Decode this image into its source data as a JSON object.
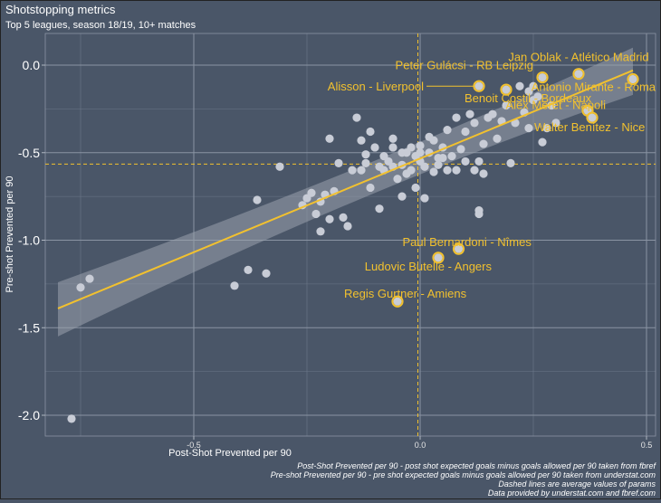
{
  "chart_data": {
    "type": "scatter",
    "title": "Shotstopping metrics",
    "subtitle": "Top 5 leagues, season 18/19, 10+ matches",
    "xlabel": "Post-Shot Prevented per 90",
    "ylabel": "Pre-shot Prevented per 90",
    "xlim": [
      -0.83,
      0.52
    ],
    "ylim": [
      -2.05,
      0.15
    ],
    "x_ticks": [
      -0.5,
      0.0,
      0.5
    ],
    "x_tick_labels": [
      "-0.5",
      "0.0",
      "0.5"
    ],
    "y_ticks": [
      0.0,
      -0.5,
      -1.0,
      -1.5,
      -2.0
    ],
    "y_tick_labels": [
      "0.0",
      "-0.5",
      "-1.0",
      "-1.5",
      "-2.0"
    ],
    "mean_x": -0.005,
    "mean_y": -0.565,
    "regression": {
      "x0": -0.8,
      "y0": -1.39,
      "x1": 0.47,
      "y1": -0.03
    },
    "ci_band": {
      "x0": -0.8,
      "lo0": -1.55,
      "hi0": -1.24,
      "xm": -0.1,
      "lom": -0.67,
      "him": -0.59,
      "x1": 0.47,
      "lo1": -0.17,
      "hi1": 0.1
    },
    "points": [
      [
        -0.77,
        -2.02
      ],
      [
        -0.75,
        -1.27
      ],
      [
        -0.73,
        -1.22
      ],
      [
        -0.41,
        -1.26
      ],
      [
        -0.38,
        -1.17
      ],
      [
        -0.34,
        -1.19
      ],
      [
        -0.36,
        -0.77
      ],
      [
        -0.31,
        -0.58
      ],
      [
        -0.26,
        -0.8
      ],
      [
        -0.25,
        -0.76
      ],
      [
        -0.24,
        -0.73
      ],
      [
        -0.23,
        -0.85
      ],
      [
        -0.22,
        -0.95
      ],
      [
        -0.22,
        -0.78
      ],
      [
        -0.21,
        -0.74
      ],
      [
        -0.2,
        -0.88
      ],
      [
        -0.2,
        -0.42
      ],
      [
        -0.19,
        -0.72
      ],
      [
        -0.18,
        -0.56
      ],
      [
        -0.17,
        -0.87
      ],
      [
        -0.16,
        -0.92
      ],
      [
        -0.14,
        -0.3
      ],
      [
        -0.13,
        -0.43
      ],
      [
        -0.12,
        -0.51
      ],
      [
        -0.12,
        -0.56
      ],
      [
        -0.11,
        -0.7
      ],
      [
        -0.11,
        -0.38
      ],
      [
        -0.1,
        -0.47
      ],
      [
        -0.09,
        -0.58
      ],
      [
        -0.09,
        -0.82
      ],
      [
        -0.08,
        -0.52
      ],
      [
        -0.08,
        -0.6
      ],
      [
        -0.07,
        -0.55
      ],
      [
        -0.06,
        -0.42
      ],
      [
        -0.06,
        -0.58
      ],
      [
        -0.05,
        -0.65
      ],
      [
        -0.04,
        -0.57
      ],
      [
        -0.04,
        -0.75
      ],
      [
        -0.03,
        -0.5
      ],
      [
        -0.03,
        -0.62
      ],
      [
        -0.02,
        -0.47
      ],
      [
        -0.02,
        -0.6
      ],
      [
        -0.01,
        -0.52
      ],
      [
        -0.01,
        -0.7
      ],
      [
        0.0,
        -0.46
      ],
      [
        0.0,
        -0.55
      ],
      [
        0.01,
        -0.58
      ],
      [
        0.01,
        -0.76
      ],
      [
        0.02,
        -0.41
      ],
      [
        0.02,
        -0.5
      ],
      [
        0.03,
        -0.43
      ],
      [
        0.03,
        -0.61
      ],
      [
        0.04,
        -0.53
      ],
      [
        0.04,
        -0.57
      ],
      [
        0.05,
        -0.47
      ],
      [
        0.06,
        -0.37
      ],
      [
        0.06,
        -0.6
      ],
      [
        0.07,
        -0.52
      ],
      [
        0.08,
        -0.3
      ],
      [
        0.08,
        -0.6
      ],
      [
        0.09,
        -0.48
      ],
      [
        0.1,
        -0.55
      ],
      [
        0.1,
        -0.38
      ],
      [
        0.11,
        -0.28
      ],
      [
        0.12,
        -0.33
      ],
      [
        0.12,
        -0.6
      ],
      [
        0.13,
        -0.55
      ],
      [
        0.14,
        -0.45
      ],
      [
        0.14,
        -0.62
      ],
      [
        0.15,
        -0.3
      ],
      [
        0.16,
        -0.28
      ],
      [
        0.17,
        -0.42
      ],
      [
        0.18,
        -0.32
      ],
      [
        0.19,
        -0.23
      ],
      [
        0.2,
        -0.56
      ],
      [
        0.21,
        -0.33
      ],
      [
        0.22,
        -0.12
      ],
      [
        0.23,
        -0.27
      ],
      [
        0.24,
        -0.36
      ],
      [
        0.25,
        -0.2
      ],
      [
        0.26,
        -0.18
      ],
      [
        0.27,
        -0.44
      ],
      [
        0.28,
        -0.36
      ],
      [
        0.29,
        -0.23
      ],
      [
        0.3,
        -0.33
      ],
      [
        -0.04,
        -0.5
      ],
      [
        0.0,
        -0.5
      ],
      [
        0.05,
        -0.53
      ],
      [
        -0.15,
        -0.6
      ],
      [
        -0.13,
        -0.6
      ],
      [
        -0.06,
        -0.47
      ],
      [
        0.13,
        -0.83
      ],
      [
        0.13,
        -0.85
      ],
      [
        0.24,
        -0.15
      ],
      [
        0.25,
        -0.12
      ]
    ],
    "highlighted": [
      {
        "name": "Jan Oblak - Atlético Madrid",
        "x": 0.35,
        "y": -0.05
      },
      {
        "name": "Peter Gulácsi - RB Leipzig",
        "x": 0.27,
        "y": -0.07
      },
      {
        "name": "Antonio Mirante - Roma",
        "x": 0.47,
        "y": -0.08
      },
      {
        "name": "Alisson - Liverpool",
        "x": 0.13,
        "y": -0.12
      },
      {
        "name": "Benoit Costil - Bordeaux",
        "x": 0.19,
        "y": -0.14
      },
      {
        "name": "Alex Meret - Napoli",
        "x": 0.37,
        "y": -0.26
      },
      {
        "name": "Walter Benítez - Nice",
        "x": 0.38,
        "y": -0.3
      },
      {
        "name": "Paul Bernardoni - Nîmes",
        "x": 0.085,
        "y": -1.05
      },
      {
        "name": "Ludovic Butelle - Angers",
        "x": 0.04,
        "y": -1.1
      },
      {
        "name": "Regis Gurtner - Amiens",
        "x": -0.05,
        "y": -1.35
      }
    ]
  },
  "captions": [
    "Post-Shot Prevented per 90 - post shot expected goals minus goals allowed per 90 taken from fbref",
    "Pre-shot Prevented per 90 - pre shot expected goals minus goals allowed per 90 taken from understat.com",
    "Dashed lines are average values of params",
    "Data provided by understat.com and fbref.com"
  ],
  "colors": {
    "background": "#4a5668",
    "point": "#c8ccd6",
    "highlight": "#f2c12e",
    "grid": "#6d7889",
    "band": "#9aa2ad"
  }
}
